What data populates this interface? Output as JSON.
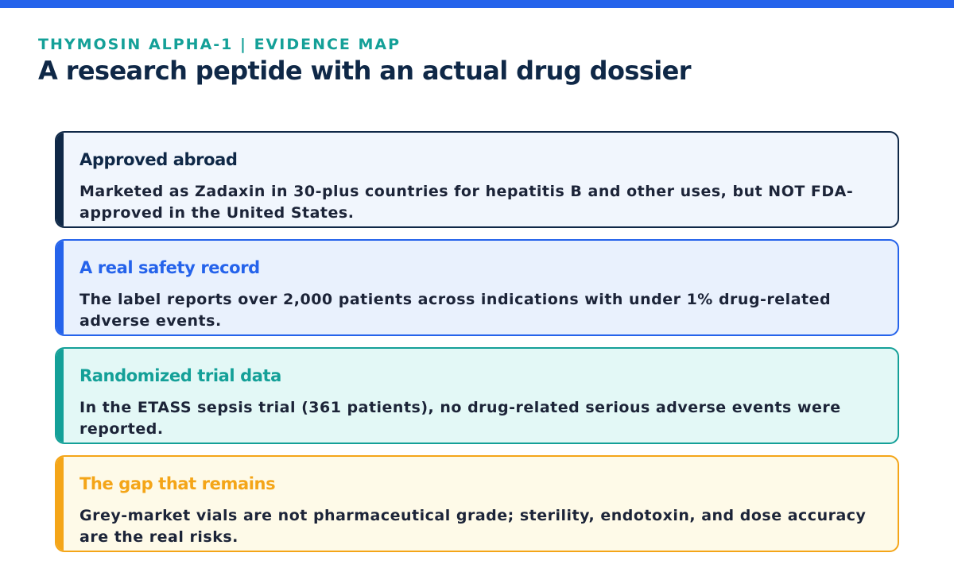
{
  "header": {
    "eyebrow": "THYMOSIN ALPHA-1 | EVIDENCE MAP",
    "title": "A research peptide with an actual drug dossier"
  },
  "colors": {
    "top_bar": "#2563eb",
    "eyebrow": "#14a098",
    "title": "#0f2847"
  },
  "cards": [
    {
      "title": "Approved abroad",
      "body": "Marketed as Zadaxin in 30-plus countries for hepatitis B and other uses, but NOT FDA-approved in the United States.",
      "accent_color": "#0f2847",
      "background": "#f1f6fd"
    },
    {
      "title": "A real safety record",
      "body": "The label reports over 2,000 patients across indications with under 1% drug-related adverse events.",
      "accent_color": "#2563eb",
      "background": "#e9f1fd"
    },
    {
      "title": "Randomized trial data",
      "body": "In the ETASS sepsis trial (361 patients), no drug-related serious adverse events were reported.",
      "accent_color": "#14a098",
      "background": "#e3f8f6"
    },
    {
      "title": "The gap that remains",
      "body": "Grey-market vials are not pharmaceutical grade; sterility, endotoxin, and dose accuracy are the real risks.",
      "accent_color": "#f4a518",
      "background": "#fefae8"
    }
  ]
}
